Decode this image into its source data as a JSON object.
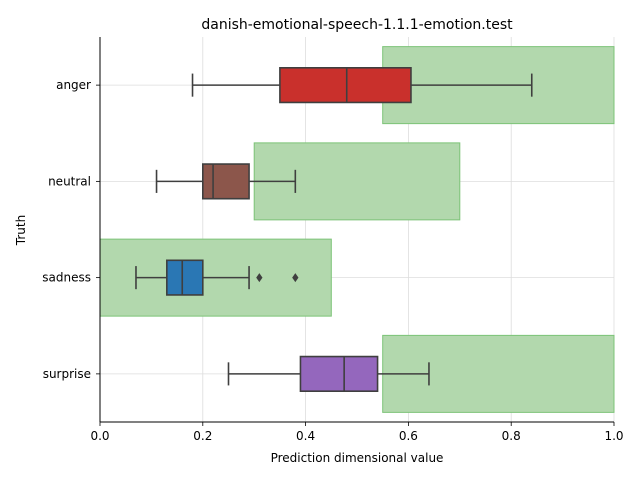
{
  "chart_data": {
    "type": "boxplot",
    "title": "danish-emotional-speech-1.1.1-emotion.test",
    "xlabel": "Prediction dimensional value",
    "ylabel": "Truth",
    "xlim": [
      0.0,
      1.0
    ],
    "xticks": [
      "0.0",
      "0.2",
      "0.4",
      "0.6",
      "0.8",
      "1.0"
    ],
    "grid": true,
    "categories": [
      "anger",
      "neutral",
      "sadness",
      "surprise"
    ],
    "boxes": [
      {
        "category": "anger",
        "whisker_low": 0.18,
        "q1": 0.35,
        "median": 0.48,
        "q3": 0.605,
        "whisker_high": 0.84,
        "outliers": [],
        "color": "#c9302c"
      },
      {
        "category": "neutral",
        "whisker_low": 0.11,
        "q1": 0.2,
        "median": 0.22,
        "q3": 0.29,
        "whisker_high": 0.38,
        "outliers": [],
        "color": "#8c564b"
      },
      {
        "category": "sadness",
        "whisker_low": 0.07,
        "q1": 0.13,
        "median": 0.16,
        "q3": 0.2,
        "whisker_high": 0.29,
        "outliers": [
          0.31,
          0.38
        ],
        "color": "#2a77b4"
      },
      {
        "category": "surprise",
        "whisker_low": 0.25,
        "q1": 0.39,
        "median": 0.475,
        "q3": 0.54,
        "whisker_high": 0.64,
        "outliers": [],
        "color": "#9467bd"
      }
    ],
    "ranges": [
      {
        "category": "anger",
        "start": 0.55,
        "end": 1.0
      },
      {
        "category": "neutral",
        "start": 0.3,
        "end": 0.7
      },
      {
        "category": "sadness",
        "start": 0.0,
        "end": 0.45
      },
      {
        "category": "surprise",
        "start": 0.55,
        "end": 1.0
      }
    ],
    "range_color": "#b2d8ad",
    "range_edge_color": "#7cc377"
  }
}
